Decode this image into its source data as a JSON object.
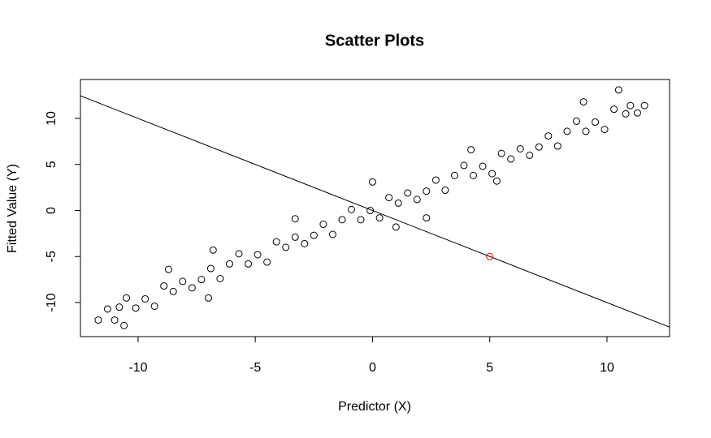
{
  "chart_data": {
    "type": "scatter",
    "title": "Scatter Plots",
    "x_label": "Predictor (X)",
    "y_label": "Fitted Value (Y)",
    "xlim": [
      -12.46,
      12.67
    ],
    "ylim": [
      -13.7,
      14.23
    ],
    "xticks": [
      -10,
      -5,
      0,
      5,
      10
    ],
    "yticks": [
      -10,
      -5,
      0,
      5,
      10
    ],
    "marker": "open-circle",
    "series": [
      {
        "color": "#000000",
        "x": [
          -11.7,
          -11.3,
          -11.0,
          -10.8,
          -10.5,
          -10.1,
          -9.7,
          -9.3,
          -8.9,
          -8.5,
          -8.1,
          -7.7,
          -7.3,
          -6.9,
          -6.5,
          -6.1,
          -5.7,
          -5.3,
          -4.9,
          -4.5,
          -4.1,
          -3.7,
          -3.3,
          -2.9,
          -2.5,
          -2.1,
          -1.7,
          -1.3,
          -0.9,
          -0.5,
          -0.1,
          0.3,
          0.7,
          1.1,
          1.5,
          1.9,
          2.3,
          2.7,
          3.1,
          3.5,
          3.9,
          4.3,
          4.7,
          5.1,
          5.5,
          5.9,
          6.3,
          6.7,
          7.1,
          7.5,
          7.9,
          8.3,
          8.7,
          9.1,
          9.5,
          9.9,
          10.3,
          10.8,
          11.0,
          11.3,
          11.6,
          -10.6,
          10.5,
          0.0,
          1.0,
          -8.7,
          -6.8,
          4.2,
          5.3,
          9.0,
          -7.0,
          2.3,
          -3.3
        ],
        "y": [
          -11.9,
          -10.7,
          -11.9,
          -10.5,
          -9.5,
          -10.6,
          -9.6,
          -10.4,
          -8.2,
          -8.8,
          -7.7,
          -8.4,
          -7.5,
          -6.3,
          -7.4,
          -5.8,
          -4.7,
          -5.8,
          -4.8,
          -5.6,
          -3.4,
          -4.0,
          -2.9,
          -3.6,
          -2.7,
          -1.5,
          -2.6,
          -1.0,
          0.1,
          -1.0,
          0.0,
          -0.8,
          1.4,
          0.8,
          1.9,
          1.2,
          2.1,
          3.3,
          2.2,
          3.8,
          4.9,
          3.8,
          4.8,
          4.0,
          6.2,
          5.6,
          6.7,
          6.0,
          6.9,
          8.1,
          7.0,
          8.6,
          9.7,
          8.6,
          9.6,
          8.8,
          11.0,
          10.5,
          11.4,
          10.6,
          11.4,
          -12.5,
          13.1,
          3.1,
          -1.8,
          -6.4,
          -4.3,
          6.6,
          3.2,
          11.8,
          -9.5,
          -0.8,
          -0.9
        ]
      },
      {
        "color": "#ff0000",
        "x": [
          5
        ],
        "y": [
          -5
        ]
      }
    ],
    "lines": [
      {
        "intercept": 0,
        "slope": -1,
        "color": "#000000"
      }
    ]
  }
}
